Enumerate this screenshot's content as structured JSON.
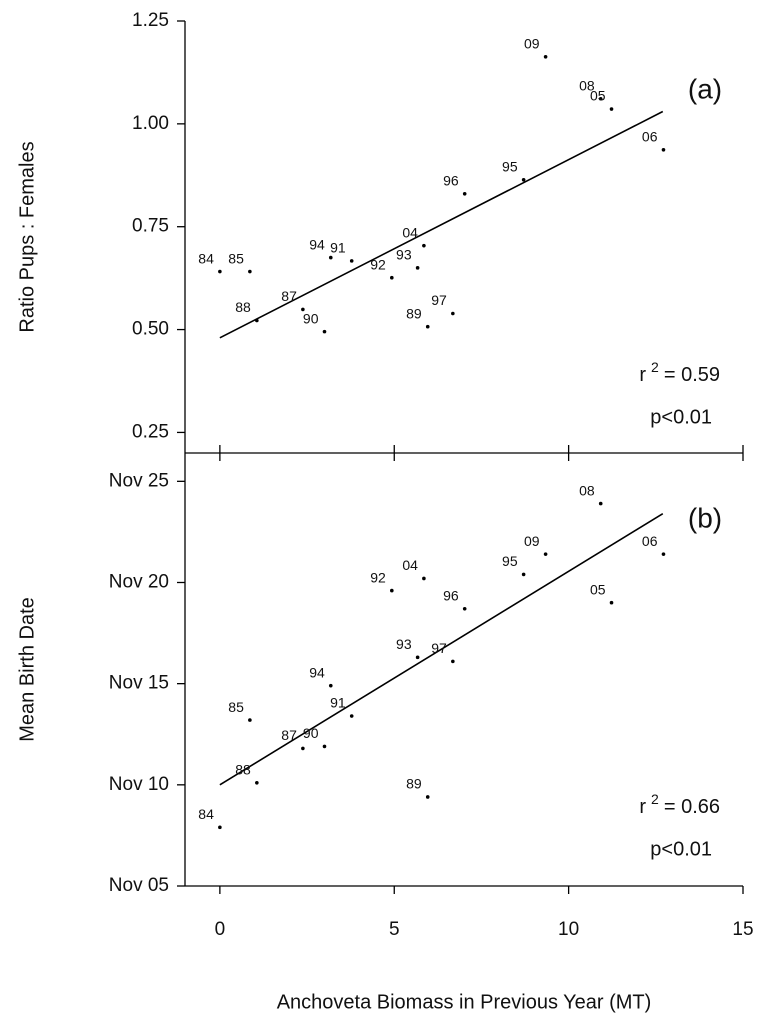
{
  "chart_data": [
    {
      "type": "scatter",
      "panel_label": "(a)",
      "ylabel": "Ratio Pups : Females",
      "x": [
        0,
        0.86,
        1.06,
        2.38,
        3.0,
        3.18,
        3.78,
        4.93,
        5.67,
        5.85,
        5.96,
        6.68,
        7.02,
        8.71,
        9.34,
        10.92,
        11.23,
        12.72
      ],
      "values": [
        0.641,
        0.641,
        0.522,
        0.549,
        0.495,
        0.675,
        0.667,
        0.626,
        0.65,
        0.704,
        0.507,
        0.539,
        0.83,
        0.864,
        1.163,
        1.061,
        1.036,
        0.937
      ],
      "point_labels": [
        "84",
        "85",
        "88",
        "87",
        "90",
        "94",
        "91",
        "92",
        "93",
        "04",
        "89",
        "97",
        "96",
        "95",
        "09",
        "08",
        "05",
        "06"
      ],
      "fit": {
        "x": [
          0,
          12.7
        ],
        "y": [
          0.48,
          1.03
        ]
      },
      "stat": {
        "base": "r",
        "sup": "2",
        "rest": "= 0.59",
        "p": "p<0.01"
      },
      "xlim": [
        -1,
        15
      ],
      "ylim": [
        0.2,
        1.25
      ],
      "yticks": [
        {
          "value": 0.25,
          "label": "0.25"
        },
        {
          "value": 0.5,
          "label": "0.50"
        },
        {
          "value": 0.75,
          "label": "0.75"
        },
        {
          "value": 1.0,
          "label": "1.00"
        },
        {
          "value": 1.25,
          "label": "1.25"
        }
      ],
      "color": "#000000"
    },
    {
      "type": "scatter",
      "panel_label": "(b)",
      "ylabel": "Mean Birth Date",
      "xlabel": "Anchoveta Biomass in Previous Year (MT)",
      "x": [
        0,
        1.06,
        0.86,
        2.38,
        3.0,
        3.18,
        3.78,
        4.93,
        5.67,
        5.85,
        5.96,
        6.68,
        7.02,
        8.71,
        9.34,
        10.92,
        11.23,
        12.72
      ],
      "values": [
        7.9,
        10.1,
        13.2,
        11.8,
        11.9,
        14.9,
        13.4,
        19.6,
        16.3,
        20.2,
        9.4,
        16.1,
        18.7,
        20.4,
        21.4,
        23.9,
        19.0,
        21.4
      ],
      "point_labels": [
        "84",
        "88",
        "85",
        "87",
        "90",
        "94",
        "91",
        "92",
        "93",
        "04",
        "89",
        "97",
        "96",
        "95",
        "09",
        "08",
        "05",
        "06"
      ],
      "fit": {
        "x": [
          0,
          12.7
        ],
        "y": [
          10.0,
          23.4
        ]
      },
      "stat": {
        "base": "r",
        "sup": "2",
        "rest": "= 0.66",
        "p": "p<0.01"
      },
      "xlim": [
        -1,
        15
      ],
      "ylim": [
        5,
        26.4
      ],
      "xticks": [
        0,
        5,
        10,
        15
      ],
      "yticks": [
        {
          "value": 5,
          "label": "Nov 05"
        },
        {
          "value": 10,
          "label": "Nov 10"
        },
        {
          "value": 15,
          "label": "Nov 15"
        },
        {
          "value": 20,
          "label": "Nov 20"
        },
        {
          "value": 25,
          "label": "Nov 25"
        }
      ],
      "color": "#000000"
    }
  ]
}
